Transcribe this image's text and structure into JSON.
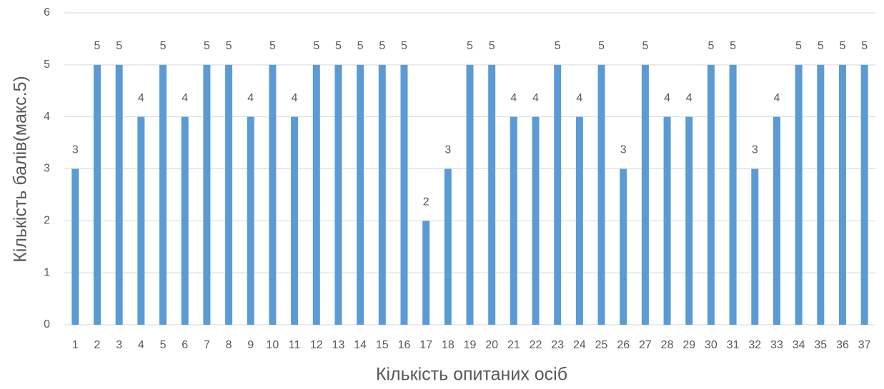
{
  "chart_data": {
    "type": "bar",
    "categories": [
      "1",
      "2",
      "3",
      "4",
      "5",
      "6",
      "7",
      "8",
      "9",
      "10",
      "11",
      "12",
      "13",
      "14",
      "15",
      "16",
      "17",
      "18",
      "19",
      "20",
      "21",
      "22",
      "23",
      "24",
      "25",
      "26",
      "27",
      "28",
      "29",
      "30",
      "31",
      "32",
      "33",
      "34",
      "35",
      "36",
      "37"
    ],
    "values": [
      3,
      5,
      5,
      4,
      5,
      4,
      5,
      5,
      4,
      5,
      4,
      5,
      5,
      5,
      5,
      5,
      2,
      3,
      5,
      5,
      4,
      4,
      5,
      4,
      5,
      3,
      5,
      4,
      4,
      5,
      5,
      3,
      4,
      5,
      5,
      5,
      5
    ],
    "color": "#5b9bd5",
    "ylim": [
      0,
      6
    ],
    "yticks": [
      0,
      1,
      2,
      3,
      4,
      5,
      6
    ],
    "grid": true,
    "x_label": "Кількість опитаних осіб",
    "y_label": "Кількість балів(макс.5)"
  }
}
